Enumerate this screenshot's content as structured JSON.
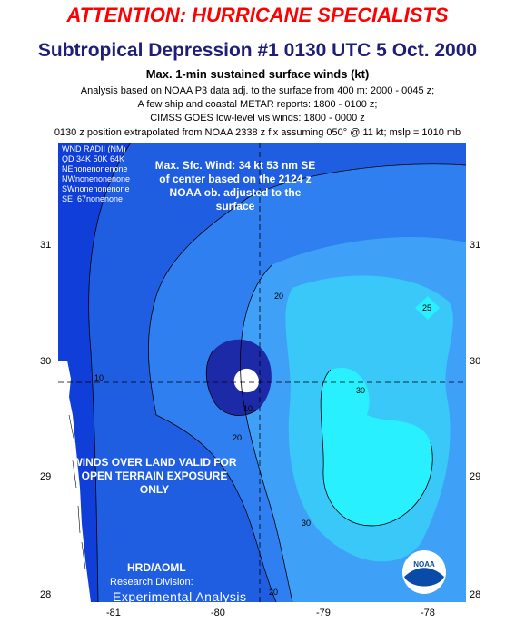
{
  "header": {
    "attention": "ATTENTION: HURRICANE SPECIALISTS",
    "title": "Subtropical Depression #1 0130 UTC 5 Oct. 2000",
    "subtitle": "Max. 1-min sustained surface winds (kt)",
    "notes": [
      "Analysis based on NOAA P3 data adj. to the surface from 400 m:  2000 - 0045 z;",
      "A few ship and coastal METAR reports: 1800 - 0100 z;",
      "CIMSS GOES low-level vis winds: 1800 - 0000 z",
      "0130 z position extrapolated from NOAA 2338 z fix assuming 050° @ 11 kt; mslp = 1010 mb"
    ]
  },
  "wind_radii": {
    "title": "WND RADII (NM)",
    "table": "QD 34K 50K 64K\nNEnonenonenone\nNWnonenonenone\nSWnonenonenone\nSE  67nonenone"
  },
  "max_wind_note": "Max. Sfc. Wind: 34 kt 53 nm SE of center based on the 2124 z NOAA ob. adjusted to the surface",
  "land_note": "WINDS OVER LAND VALID FOR OPEN TERRAIN EXPOSURE ONLY",
  "credits": {
    "division": "HRD/AOML",
    "research": "Research Division:",
    "analysis": "Experimental Analysis",
    "logo_text": "NOAA"
  },
  "axes": {
    "lon_ticks": [
      "-81",
      "-80",
      "-79",
      "-78"
    ],
    "lat_ticks": [
      "31",
      "30",
      "29",
      "28"
    ]
  },
  "contour_labels": [
    "10",
    "10",
    "20",
    "20",
    "20",
    "30",
    "30",
    "25"
  ],
  "colors": {
    "attention": "#ff0000",
    "title": "#1e1e78",
    "land": "#ffffff",
    "wind_0_10": "#0f3fd8",
    "wind_10_15": "#1f5ee0",
    "wind_15_20": "#2f7ff0",
    "wind_20_25": "#3fa0f8",
    "wind_25_30": "#39c8f8",
    "wind_30_plus": "#28f0ff",
    "wind_low_core": "#1c2aa8"
  }
}
